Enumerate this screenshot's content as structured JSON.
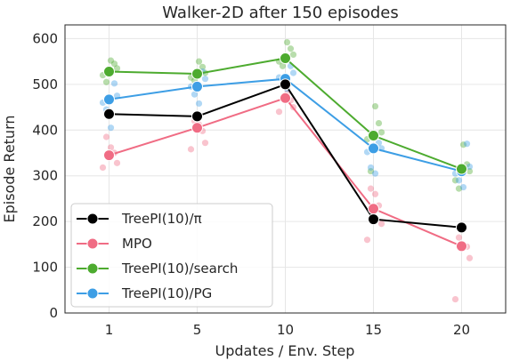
{
  "chart_data": {
    "type": "line",
    "title": "Walker-2D after 150 episodes",
    "xlabel": "Updates / Env. Step",
    "ylabel": "Episode Return",
    "categories": [
      "1",
      "5",
      "10",
      "15",
      "20"
    ],
    "yticks": [
      0,
      100,
      200,
      300,
      400,
      500,
      600
    ],
    "ylim": [
      0,
      630
    ],
    "grid": true,
    "legend_position": "lower-left",
    "series": [
      {
        "name": "TreePI(10)/π",
        "color": "#000000",
        "values": [
          435,
          430,
          500,
          205,
          187
        ],
        "scatter": [
          [],
          [],
          [],
          [],
          []
        ]
      },
      {
        "name": "MPO",
        "color": "#f06c84",
        "values": [
          345,
          405,
          470,
          228,
          146
        ],
        "scatter": [
          [
            385,
            362,
            350,
            328,
            318
          ],
          [
            420,
            412,
            398,
            372,
            358
          ],
          [
            500,
            480,
            465,
            450,
            440
          ],
          [
            272,
            260,
            235,
            195,
            160
          ],
          [
            165,
            150,
            145,
            120,
            30
          ]
        ]
      },
      {
        "name": "TreePI(10)/search",
        "color": "#4dab2f",
        "values": [
          528,
          523,
          557,
          388,
          315
        ],
        "scatter": [
          [
            552,
            545,
            535,
            520,
            505
          ],
          [
            550,
            538,
            525,
            515,
            508
          ],
          [
            592,
            578,
            565,
            550,
            540
          ],
          [
            452,
            415,
            395,
            380,
            310
          ],
          [
            368,
            325,
            310,
            290,
            272
          ]
        ]
      },
      {
        "name": "TreePI(10)/PG",
        "color": "#3d9ee5",
        "values": [
          467,
          495,
          512,
          360,
          310
        ],
        "scatter": [
          [
            502,
            475,
            460,
            445,
            405
          ],
          [
            528,
            512,
            495,
            478,
            458
          ],
          [
            540,
            525,
            515,
            500,
            490
          ],
          [
            372,
            360,
            352,
            318,
            305
          ],
          [
            370,
            320,
            305,
            290,
            275
          ]
        ]
      }
    ]
  }
}
